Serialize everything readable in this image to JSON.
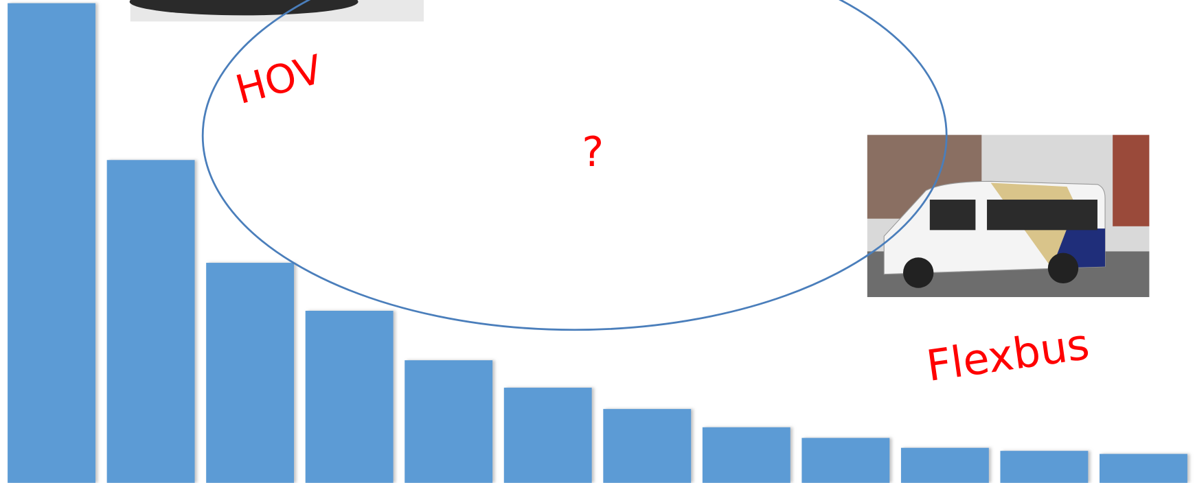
{
  "chart_data": {
    "type": "bar",
    "values": [
      630,
      424,
      289,
      226,
      161,
      125,
      97,
      73,
      59,
      46,
      42,
      38
    ],
    "color": "#5b9bd5",
    "ylim": [
      0,
      630
    ],
    "annotations": [
      "HOV",
      "?",
      "Flexbus"
    ]
  }
}
